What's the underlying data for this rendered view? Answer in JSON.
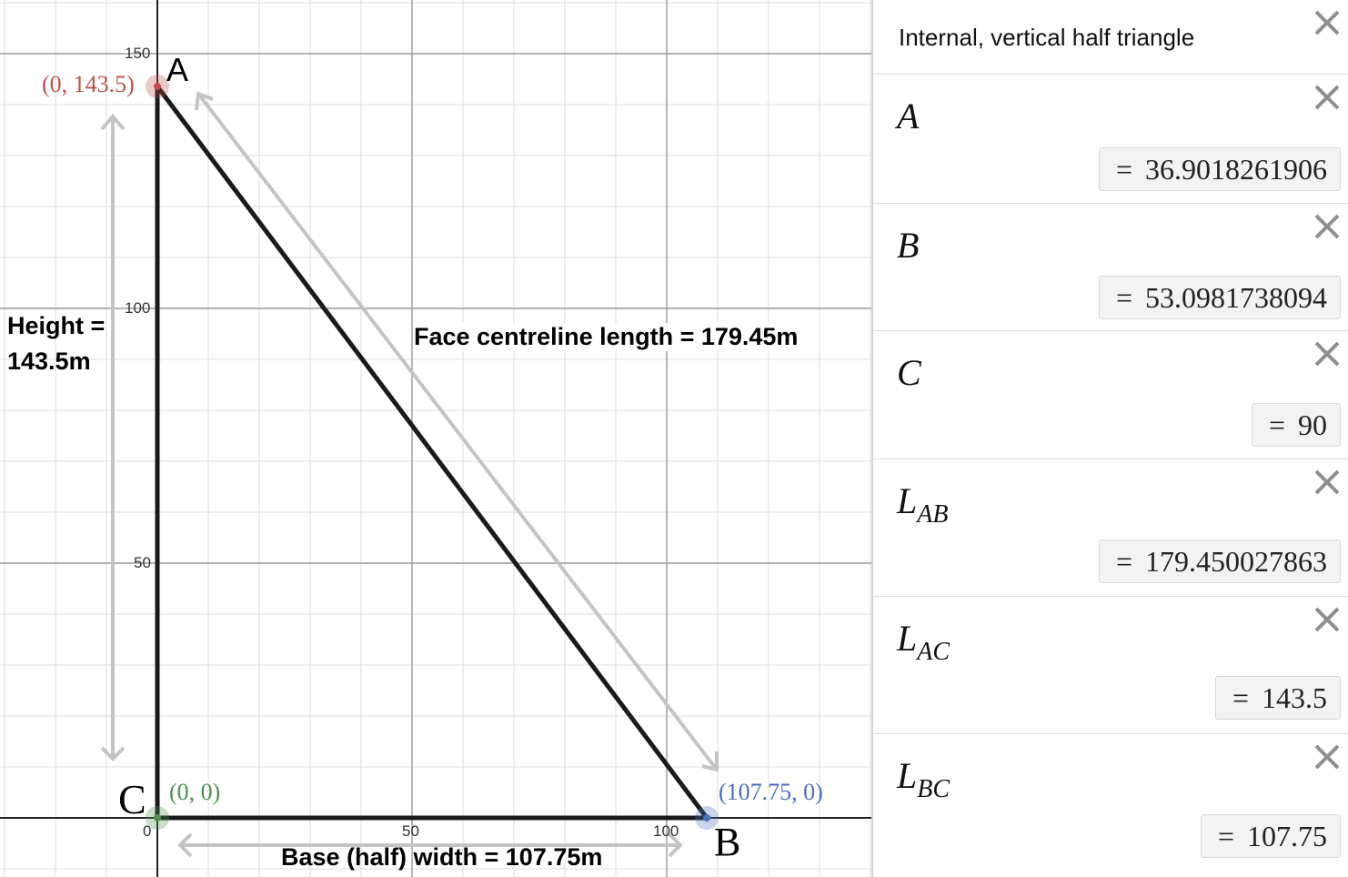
{
  "graph": {
    "colors": {
      "point_a": "#c0504d",
      "point_b": "#4a6fbf",
      "point_c": "#4e8f4e",
      "triangle": "#1a1a1a",
      "arrows": "#c4c4c4"
    },
    "axis_ticks": {
      "x": [
        "0",
        "50",
        "100"
      ],
      "y": [
        "50",
        "100",
        "150"
      ]
    },
    "vertices": {
      "a": {
        "label": "A",
        "coord_label": "(0, 143.5)"
      },
      "b": {
        "label": "B",
        "coord_label": "(107.75, 0)"
      },
      "c": {
        "label": "C",
        "coord_label": "(0, 0)"
      }
    },
    "labels": {
      "height_line1": "Height =",
      "height_line2": "143.5m",
      "face": "Face centreline length = 179.45m",
      "base": "Base (half) width = 107.75m"
    }
  },
  "panel": {
    "note": "Internal, vertical half triangle",
    "expressions": [
      {
        "name": "A",
        "sub": "",
        "value": "36.9018261906"
      },
      {
        "name": "B",
        "sub": "",
        "value": "53.0981738094"
      },
      {
        "name": "C",
        "sub": "",
        "value": "90"
      },
      {
        "name": "L",
        "sub": "AB",
        "value": "179.450027863"
      },
      {
        "name": "L",
        "sub": "AC",
        "value": "143.5"
      },
      {
        "name": "L",
        "sub": "BC",
        "value": "107.75"
      }
    ],
    "equals_sign": "="
  }
}
